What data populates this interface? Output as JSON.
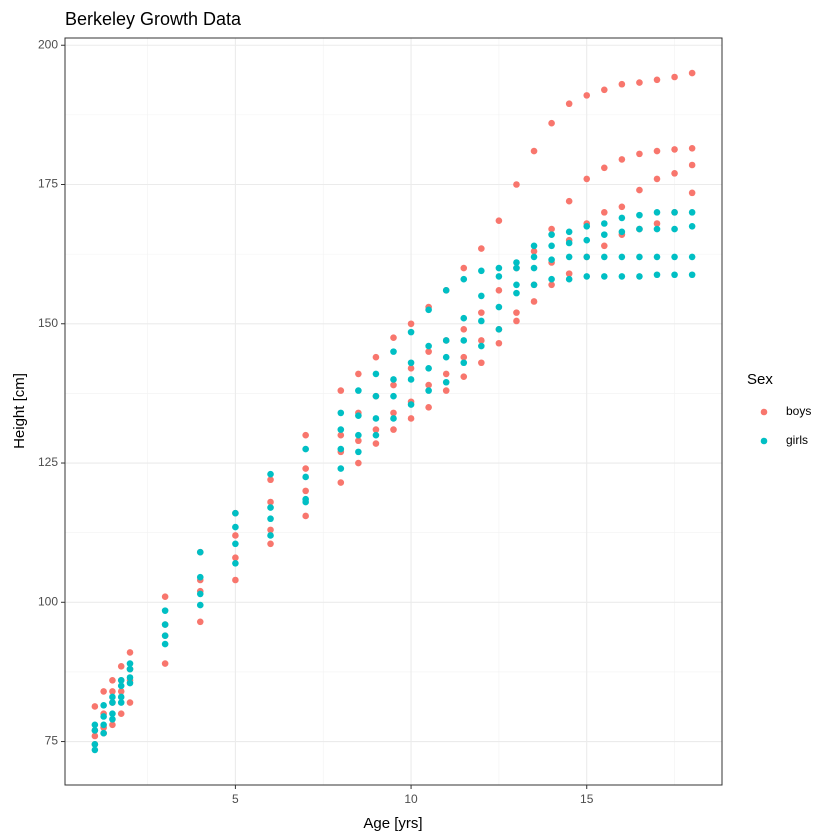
{
  "chart_data": {
    "type": "scatter",
    "title": "Berkeley Growth Data",
    "x_label": "Age [yrs]",
    "y_label": "Height [cm]",
    "legend_title": "Sex",
    "legend_position": "right",
    "grid": true,
    "xlim": [
      0.15,
      18.85
    ],
    "xticks": [
      5,
      10,
      15
    ],
    "ylim": [
      67.2,
      201.3
    ],
    "yticks": [
      75,
      100,
      125,
      150,
      175,
      200
    ],
    "series": [
      {
        "name": "boys",
        "color": "#F8766D",
        "x": [
          1,
          1,
          1,
          1,
          1.25,
          1.25,
          1.25,
          1.25,
          1.5,
          1.5,
          1.5,
          1.5,
          1.75,
          1.75,
          1.75,
          1.75,
          2,
          2,
          2,
          2,
          3,
          3,
          3,
          3,
          4,
          4,
          4,
          4,
          5,
          5,
          5,
          5,
          6,
          6,
          6,
          6,
          7,
          7,
          7,
          7,
          8,
          8,
          8,
          8,
          8.5,
          8.5,
          8.5,
          8.5,
          9,
          9,
          9,
          9,
          9.5,
          9.5,
          9.5,
          9.5,
          10,
          10,
          10,
          10,
          10.5,
          10.5,
          10.5,
          10.5,
          11,
          11,
          11,
          11,
          11.5,
          11.5,
          11.5,
          11.5,
          12,
          12,
          12,
          12,
          12.5,
          12.5,
          12.5,
          12.5,
          13,
          13,
          13,
          13,
          13.5,
          13.5,
          13.5,
          13.5,
          14,
          14,
          14,
          14,
          14.5,
          14.5,
          14.5,
          14.5,
          15,
          15,
          15,
          15,
          15.5,
          15.5,
          15.5,
          15.5,
          16,
          16,
          16,
          16,
          16.5,
          16.5,
          16.5,
          16.5,
          17,
          17,
          17,
          17,
          17.5,
          17.5,
          17.5,
          17.5,
          18,
          18,
          18,
          18
        ],
        "values": [
          81.3,
          77,
          76,
          74.5,
          84,
          80,
          77.5,
          76.5,
          86,
          84,
          82,
          78,
          88.5,
          86,
          84,
          80,
          91,
          88,
          86,
          82,
          101,
          96,
          94,
          89,
          109,
          104,
          102,
          96.5,
          116,
          112,
          108,
          104,
          122,
          118,
          113,
          110.5,
          130,
          124,
          120,
          115.5,
          138,
          130,
          127,
          121.5,
          141,
          134,
          129,
          125,
          144,
          137,
          131,
          128.5,
          147.5,
          139,
          134,
          131,
          150,
          142,
          136,
          133,
          153,
          145,
          139,
          135,
          156,
          147,
          141,
          138,
          160,
          149,
          144,
          140.5,
          163.5,
          152,
          147,
          143,
          168.5,
          156,
          149,
          146.5,
          175,
          160,
          152,
          150.5,
          181,
          163,
          157,
          154,
          186,
          167,
          161,
          157,
          189.5,
          172,
          165,
          159,
          191,
          176,
          168,
          162,
          192,
          178,
          170,
          164,
          193,
          179.5,
          171,
          166,
          193.3,
          180.5,
          174,
          167,
          193.8,
          181,
          176,
          168,
          194.3,
          181.3,
          177,
          170,
          195,
          181.5,
          178.5,
          173.5
        ]
      },
      {
        "name": "girls",
        "color": "#00BFC4",
        "x": [
          1,
          1,
          1,
          1,
          1.25,
          1.25,
          1.25,
          1.25,
          1.5,
          1.5,
          1.5,
          1.5,
          1.75,
          1.75,
          1.75,
          1.75,
          2,
          2,
          2,
          2,
          3,
          3,
          3,
          3,
          4,
          4,
          4,
          4,
          5,
          5,
          5,
          5,
          6,
          6,
          6,
          6,
          7,
          7,
          7,
          7,
          8,
          8,
          8,
          8,
          8.5,
          8.5,
          8.5,
          8.5,
          9,
          9,
          9,
          9,
          9.5,
          9.5,
          9.5,
          9.5,
          10,
          10,
          10,
          10,
          10.5,
          10.5,
          10.5,
          10.5,
          11,
          11,
          11,
          11,
          11.5,
          11.5,
          11.5,
          11.5,
          12,
          12,
          12,
          12,
          12.5,
          12.5,
          12.5,
          12.5,
          13,
          13,
          13,
          13,
          13.5,
          13.5,
          13.5,
          13.5,
          14,
          14,
          14,
          14,
          14.5,
          14.5,
          14.5,
          14.5,
          15,
          15,
          15,
          15,
          15.5,
          15.5,
          15.5,
          15.5,
          16,
          16,
          16,
          16,
          16.5,
          16.5,
          16.5,
          16.5,
          17,
          17,
          17,
          17,
          17.5,
          17.5,
          17.5,
          17.5,
          18,
          18,
          18,
          18
        ],
        "values": [
          78,
          77,
          74.5,
          73.5,
          81.5,
          79.5,
          78,
          76.5,
          83,
          82,
          80,
          79,
          86,
          85,
          83,
          82,
          89,
          88,
          86.5,
          85.5,
          98.5,
          96,
          94,
          92.5,
          109,
          104.5,
          101.5,
          99.5,
          116,
          113.5,
          110.5,
          107,
          123,
          117,
          115,
          112,
          127.5,
          122.5,
          118.5,
          118,
          134,
          131,
          127.5,
          124,
          138,
          133.5,
          130,
          127,
          141,
          137,
          133,
          130,
          145,
          140,
          137,
          133,
          148.5,
          143,
          140,
          135.5,
          152.5,
          146,
          142,
          138,
          156,
          147,
          144,
          139.5,
          158,
          151,
          147,
          143,
          159.5,
          155,
          150.5,
          146,
          160,
          158.5,
          153,
          149,
          161,
          160,
          157,
          155.5,
          164,
          162,
          160,
          157,
          166,
          164,
          161.5,
          158,
          166.5,
          164.5,
          162,
          158,
          167.5,
          165,
          162,
          158.5,
          168,
          166,
          162,
          158.5,
          169,
          166.5,
          162,
          158.5,
          169.5,
          167,
          162,
          158.5,
          170,
          167,
          162,
          158.8,
          170,
          167,
          162,
          158.8,
          170,
          167.5,
          162,
          158.8
        ]
      }
    ]
  }
}
